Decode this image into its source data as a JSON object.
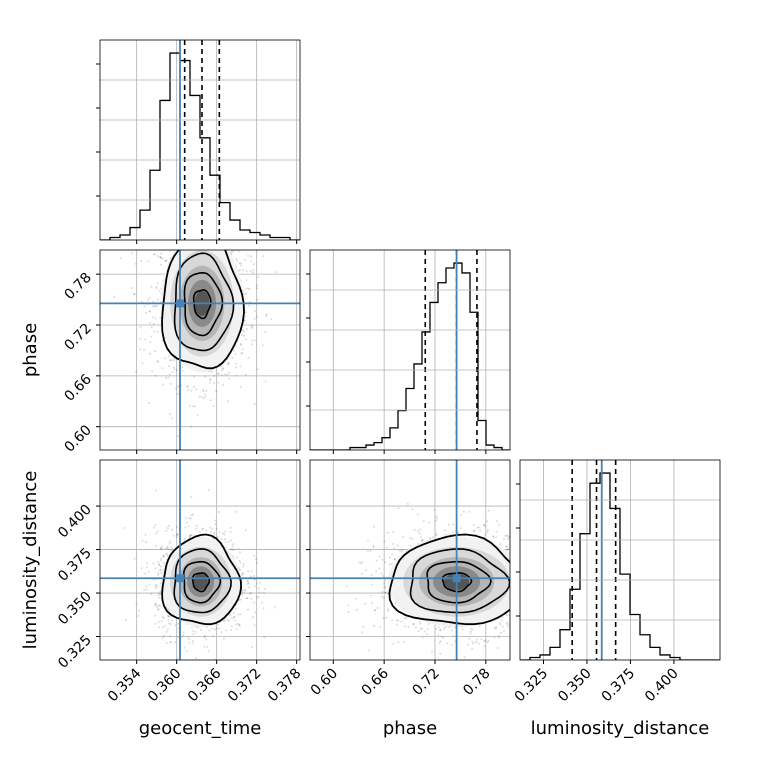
{
  "chart_data": {
    "type": "corner",
    "parameters": [
      "geocent_time",
      "phase",
      "luminosity_distance"
    ],
    "truths": [
      0.3605,
      0.7455,
      0.3585
    ],
    "truth_color": "#4682b4",
    "quantiles": [
      [
        0.3612,
        0.3638,
        0.3664
      ],
      [
        0.7085,
        0.7455,
        0.7695
      ],
      [
        0.3415,
        0.3555,
        0.3665
      ]
    ],
    "ranges": [
      [
        0.3485,
        0.3785
      ],
      [
        0.5725,
        0.8085
      ],
      [
        0.3115,
        0.4265
      ]
    ],
    "ticks": [
      {
        "values": [
          0.354,
          0.36,
          0.366,
          0.372,
          0.378
        ],
        "labels": [
          "0.354",
          "0.360",
          "0.366",
          "0.372",
          "0.378"
        ]
      },
      {
        "values": [
          0.6,
          0.66,
          0.72,
          0.78
        ],
        "labels": [
          "0.60",
          "0.66",
          "0.72",
          "0.78"
        ]
      },
      {
        "values": [
          0.325,
          0.35,
          0.375,
          0.4
        ],
        "labels": [
          "0.325",
          "0.350",
          "0.375",
          "0.400"
        ]
      }
    ],
    "histograms": [
      {
        "param": "geocent_time",
        "counts": [
          0,
          1,
          2,
          5,
          12,
          28,
          56,
          75,
          72,
          58,
          41,
          26,
          15,
          8,
          4,
          3,
          2,
          1,
          1,
          0
        ]
      },
      {
        "param": "phase",
        "counts": [
          0,
          0,
          0,
          0,
          0,
          1,
          1,
          2,
          3,
          5,
          9,
          16,
          25,
          35,
          48,
          60,
          68,
          74,
          76,
          72,
          56,
          12,
          2,
          1,
          0
        ]
      },
      {
        "param": "luminosity_distance",
        "counts": [
          0,
          1,
          2,
          5,
          12,
          28,
          50,
          70,
          74,
          60,
          34,
          18,
          10,
          5,
          2,
          1,
          0,
          0,
          0,
          0
        ]
      }
    ],
    "scatter_centers": [
      {
        "x_param": "geocent_time",
        "y_param": "phase",
        "x": 0.3638,
        "y": 0.7455,
        "sx": 0.0028,
        "sy": 0.037
      },
      {
        "x_param": "geocent_time",
        "y_param": "luminosity_distance",
        "x": 0.3636,
        "y": 0.3565,
        "sx": 0.0027,
        "sy": 0.0118
      },
      {
        "x_param": "phase",
        "y_param": "luminosity_distance",
        "x": 0.7455,
        "y": 0.3565,
        "sx": 0.037,
        "sy": 0.0118
      }
    ],
    "grid": true
  }
}
